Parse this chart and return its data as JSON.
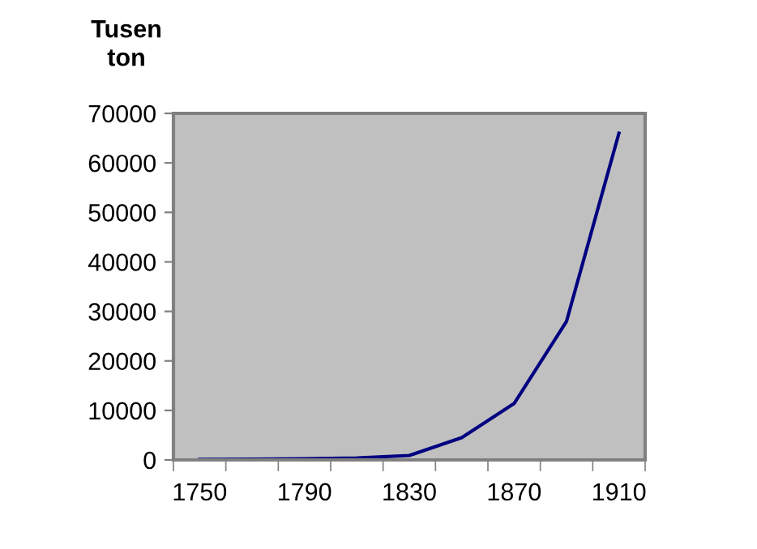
{
  "chart_data": {
    "type": "line",
    "ylabel": "Tusen\nton",
    "categories": [
      "1750",
      null,
      "1790",
      null,
      "1830",
      null,
      "1870",
      null,
      "1910"
    ],
    "series": [
      {
        "color": "#000080",
        "values": [
          100,
          150,
          250,
          400,
          900,
          4500,
          11400,
          28000,
          66000
        ]
      }
    ],
    "ylim": [
      0,
      70000
    ],
    "yticks": [
      0,
      10000,
      20000,
      30000,
      40000,
      50000,
      60000,
      70000
    ],
    "grid": false,
    "legend": false,
    "marker": "none",
    "line_style": "solid"
  }
}
